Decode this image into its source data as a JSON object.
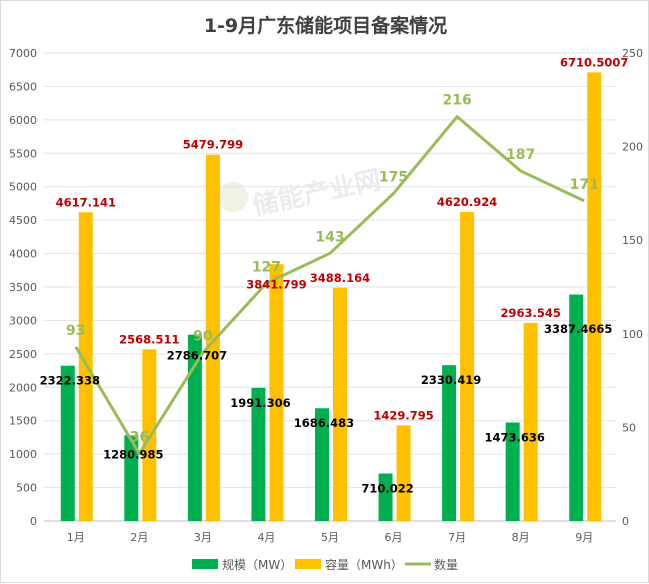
{
  "chart_data": {
    "type": "bar",
    "title": "1-9月广东储能项目备案情况",
    "categories": [
      "1月",
      "2月",
      "3月",
      "4月",
      "5月",
      "6月",
      "7月",
      "8月",
      "9月"
    ],
    "series": [
      {
        "name": "规模（MW）",
        "axis": "left",
        "type": "bar",
        "color": "#00b050",
        "values": [
          2322.338,
          1280.985,
          2786.707,
          1991.306,
          1686.483,
          710.022,
          2330.419,
          1473.636,
          3387.4665
        ],
        "labels": [
          "2322.338",
          "1280.985",
          "2786.707",
          "1991.306",
          "1686.483",
          "710.022",
          "2330.419",
          "1473.636",
          "3387.4665"
        ]
      },
      {
        "name": "容量（MWh）",
        "axis": "left",
        "type": "bar",
        "color": "#ffc000",
        "values": [
          4617.141,
          2568.511,
          5479.799,
          3841.799,
          3488.164,
          1429.795,
          4620.924,
          2963.545,
          6710.5007
        ],
        "labels": [
          "4617.141",
          "2568.511",
          "5479.799",
          "3841.799",
          "3488.164",
          "1429.795",
          "4620.924",
          "2963.545",
          "6710.5007"
        ]
      },
      {
        "name": "数量",
        "axis": "right",
        "type": "line",
        "color": "#9bbb59",
        "values": [
          93,
          36,
          90,
          127,
          143,
          175,
          216,
          187,
          171
        ],
        "labels": [
          "93",
          "36",
          "90",
          "127",
          "143",
          "175",
          "216",
          "187",
          "171"
        ]
      }
    ],
    "y_left": {
      "lim": [
        0,
        7000
      ],
      "ticks": [
        "0",
        "500",
        "1000",
        "1500",
        "2000",
        "2500",
        "3000",
        "3500",
        "4000",
        "4500",
        "5000",
        "5500",
        "6000",
        "6500",
        "7000"
      ]
    },
    "y_right": {
      "lim": [
        0,
        250
      ],
      "ticks": [
        "0",
        "50",
        "100",
        "150",
        "200",
        "250"
      ]
    },
    "grid": true,
    "legend": "bottom",
    "label_colors": {
      "bar1": "#000000",
      "bar2": "#c00000",
      "line": "#9bbb59"
    }
  },
  "watermark": "储能产业网"
}
